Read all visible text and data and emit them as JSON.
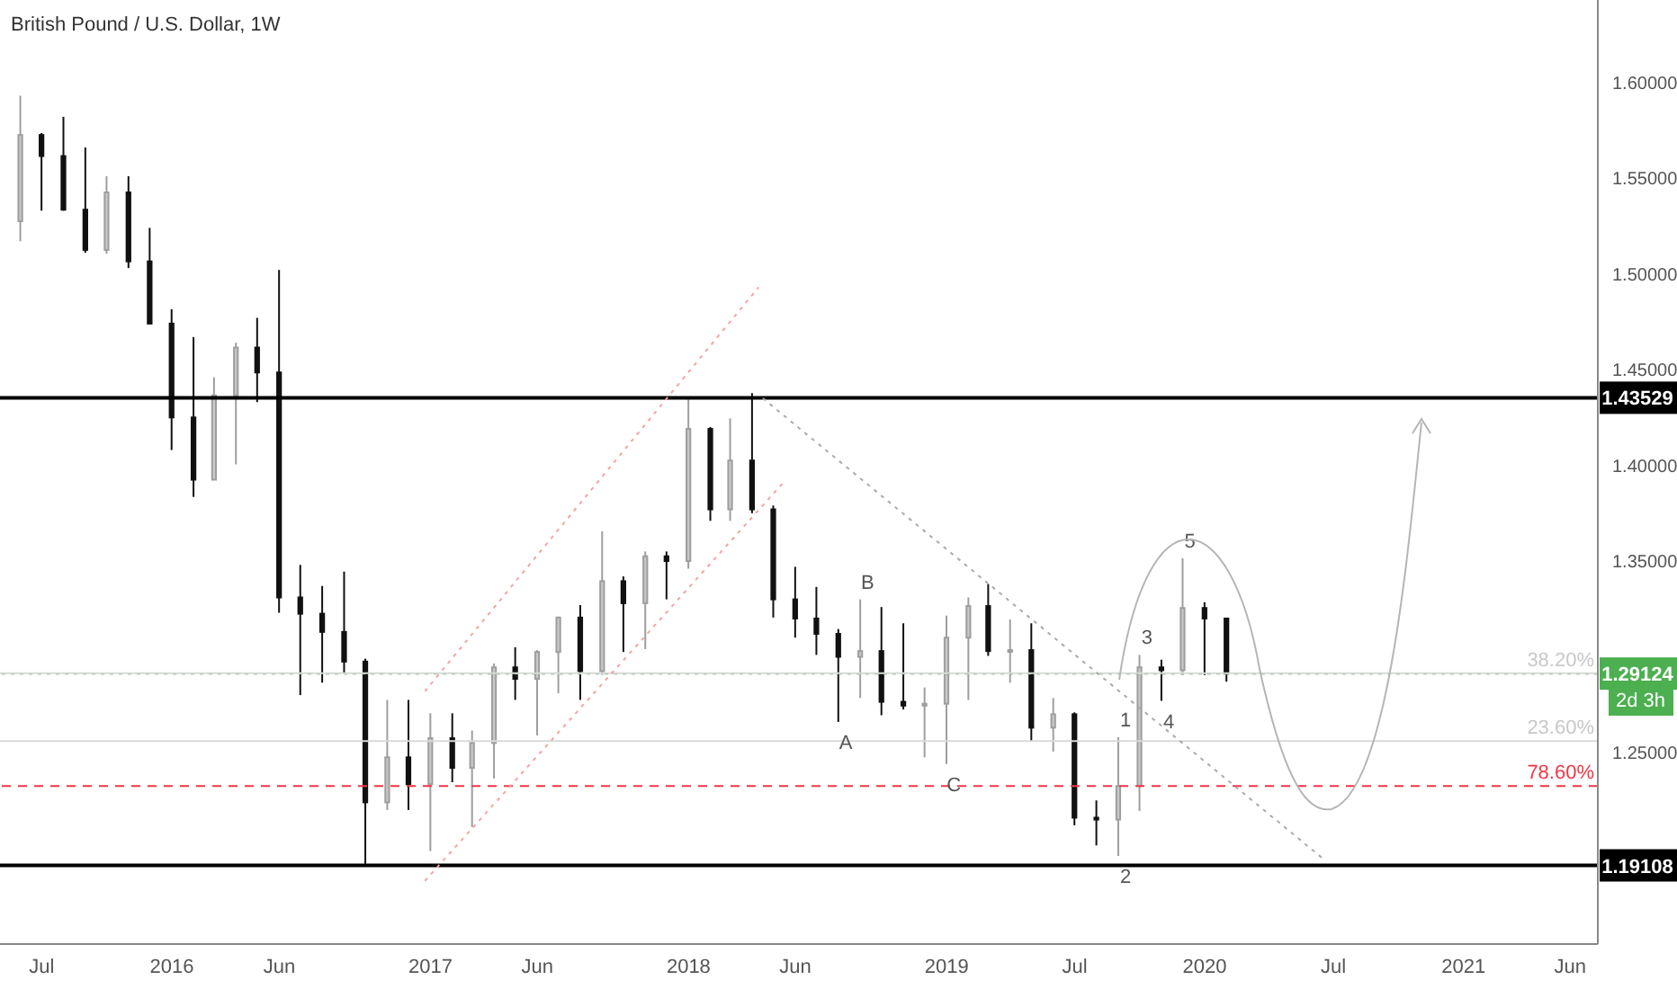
{
  "chart_data": {
    "type": "candlestick",
    "title": "British Pound / U.S. Dollar, 1W",
    "x": [
      "2015-06",
      "2015-07",
      "2015-08",
      "2015-09",
      "2015-10",
      "2015-11",
      "2015-12",
      "2016-01",
      "2016-02",
      "2016-03",
      "2016-04",
      "2016-05",
      "2016-06",
      "2016-07",
      "2016-08",
      "2016-09",
      "2016-10",
      "2016-11",
      "2016-12",
      "2017-01",
      "2017-02",
      "2017-03",
      "2017-04",
      "2017-05",
      "2017-06",
      "2017-07",
      "2017-08",
      "2017-09",
      "2017-10",
      "2017-11",
      "2017-12",
      "2018-01",
      "2018-02",
      "2018-03",
      "2018-04",
      "2018-05",
      "2018-06",
      "2018-07",
      "2018-08",
      "2018-09",
      "2018-10",
      "2018-11",
      "2018-12",
      "2019-01",
      "2019-02",
      "2019-03",
      "2019-04",
      "2019-05",
      "2019-06",
      "2019-07",
      "2019-08",
      "2019-09",
      "2019-10",
      "2019-11",
      "2019-12",
      "2020-01",
      "2020-02"
    ],
    "ohlc": [
      [
        1.5275,
        1.593,
        1.517,
        1.5725
      ],
      [
        1.5725,
        1.5735,
        1.533,
        1.5615
      ],
      [
        1.5615,
        1.582,
        1.533,
        1.5335
      ],
      [
        1.5335,
        1.566,
        1.511,
        1.5125
      ],
      [
        1.5125,
        1.551,
        1.5105,
        1.5425
      ],
      [
        1.5425,
        1.551,
        1.503,
        1.5065
      ],
      [
        1.5065,
        1.524,
        1.474,
        1.474
      ],
      [
        1.474,
        1.4815,
        1.408,
        1.425
      ],
      [
        1.425,
        1.467,
        1.3835,
        1.3925
      ],
      [
        1.3925,
        1.446,
        1.3925,
        1.4365
      ],
      [
        1.4365,
        1.464,
        1.4005,
        1.4615
      ],
      [
        1.4615,
        1.477,
        1.433,
        1.4485
      ],
      [
        1.4485,
        1.502,
        1.323,
        1.331
      ],
      [
        1.331,
        1.348,
        1.28,
        1.3225
      ],
      [
        1.3225,
        1.337,
        1.2865,
        1.313
      ],
      [
        1.313,
        1.3445,
        1.2915,
        1.2975
      ],
      [
        1.2975,
        1.299,
        1.191,
        1.224
      ],
      [
        1.224,
        1.2775,
        1.22,
        1.2475
      ],
      [
        1.2475,
        1.2775,
        1.22,
        1.2335
      ],
      [
        1.2335,
        1.2705,
        1.1985,
        1.2575
      ],
      [
        1.2575,
        1.2705,
        1.2345,
        1.242
      ],
      [
        1.242,
        1.2615,
        1.211,
        1.255
      ],
      [
        1.255,
        1.2965,
        1.2365,
        1.2945
      ],
      [
        1.2945,
        1.305,
        1.2775,
        1.2885
      ],
      [
        1.2885,
        1.3035,
        1.259,
        1.3025
      ],
      [
        1.3025,
        1.321,
        1.281,
        1.3205
      ],
      [
        1.3205,
        1.327,
        1.2775,
        1.2925
      ],
      [
        1.2925,
        1.3655,
        1.2905,
        1.3395
      ],
      [
        1.3395,
        1.342,
        1.3025,
        1.328
      ],
      [
        1.328,
        1.355,
        1.304,
        1.3525
      ],
      [
        1.3525,
        1.355,
        1.33,
        1.35
      ],
      [
        1.35,
        1.4345,
        1.346,
        1.419
      ],
      [
        1.419,
        1.42,
        1.371,
        1.377
      ],
      [
        1.377,
        1.4245,
        1.371,
        1.4025
      ],
      [
        1.4025,
        1.4377,
        1.375,
        1.377
      ],
      [
        1.377,
        1.379,
        1.3205,
        1.33
      ],
      [
        1.33,
        1.347,
        1.31,
        1.32
      ],
      [
        1.32,
        1.3365,
        1.301,
        1.312
      ],
      [
        1.312,
        1.3145,
        1.266,
        1.3
      ],
      [
        1.3,
        1.33,
        1.2785,
        1.303
      ],
      [
        1.303,
        1.326,
        1.2695,
        1.2765
      ],
      [
        1.2765,
        1.3175,
        1.2725,
        1.2745
      ],
      [
        1.2745,
        1.284,
        1.2475,
        1.2755
      ],
      [
        1.2755,
        1.3215,
        1.244,
        1.31
      ],
      [
        1.31,
        1.331,
        1.2775,
        1.3265
      ],
      [
        1.3265,
        1.338,
        1.3005,
        1.303
      ],
      [
        1.303,
        1.3195,
        1.2865,
        1.3035
      ],
      [
        1.3035,
        1.3175,
        1.256,
        1.263
      ],
      [
        1.263,
        1.2785,
        1.2505,
        1.27
      ],
      [
        1.27,
        1.271,
        1.212,
        1.216
      ],
      [
        1.216,
        1.225,
        1.2015,
        1.215
      ],
      [
        1.215,
        1.258,
        1.196,
        1.2325
      ],
      [
        1.2325,
        1.301,
        1.2195,
        1.2945
      ],
      [
        1.2945,
        1.2985,
        1.277,
        1.293
      ],
      [
        1.293,
        1.3515,
        1.2905,
        1.3255
      ],
      [
        1.3255,
        1.3285,
        1.2905,
        1.32
      ],
      [
        1.32,
        1.32,
        1.287,
        1.29124
      ]
    ],
    "xlim": [
      "2015-05-03",
      "2021-07-10"
    ],
    "xticks": [
      {
        "value": "2015-07-01",
        "label": "Jul"
      },
      {
        "value": "2016-01-01",
        "label": "2016"
      },
      {
        "value": "2016-06-01",
        "label": "Jun"
      },
      {
        "value": "2017-01-01",
        "label": "2017"
      },
      {
        "value": "2017-06-01",
        "label": "Jun"
      },
      {
        "value": "2018-01-01",
        "label": "2018"
      },
      {
        "value": "2018-06-01",
        "label": "Jun"
      },
      {
        "value": "2019-01-01",
        "label": "2019"
      },
      {
        "value": "2019-07-01",
        "label": "Jul"
      },
      {
        "value": "2020-01-01",
        "label": "2020"
      },
      {
        "value": "2020-07-01",
        "label": "Jul"
      },
      {
        "value": "2021-01-01",
        "label": "2021"
      },
      {
        "value": "2021-06-01",
        "label": "Jun"
      }
    ],
    "ylim": [
      1.15,
      1.643
    ],
    "yticks": [
      {
        "value": 1.25,
        "label": "1.25000"
      },
      {
        "value": 1.35,
        "label": "1.35000"
      },
      {
        "value": 1.4,
        "label": "1.40000"
      },
      {
        "value": 1.45,
        "label": "1.45000"
      },
      {
        "value": 1.5,
        "label": "1.50000"
      },
      {
        "value": 1.55,
        "label": "1.55000"
      },
      {
        "value": 1.6,
        "label": "1.60000"
      }
    ],
    "ref_lines": [
      {
        "axis": "y",
        "value": 1.43529,
        "label": "1.43529",
        "color": "#000000",
        "line_style": "solid"
      },
      {
        "axis": "y",
        "value": 1.19108,
        "label": "1.19108",
        "color": "#000000",
        "line_style": "solid"
      },
      {
        "axis": "y",
        "value": 1.29124,
        "label": "1.29124",
        "color": "#4caf50",
        "line_style": "dotted"
      },
      {
        "axis": "y",
        "value": 1.2915,
        "color": "#d9d9d9",
        "line_style": "solid"
      },
      {
        "axis": "y",
        "value": 1.256,
        "color": "#d9d9d9",
        "line_style": "solid"
      },
      {
        "axis": "y",
        "value": 1.2325,
        "color": "#f23645",
        "line_style": "dashed"
      }
    ],
    "series": [
      {
        "type": "line",
        "x": [
          "2016-12-24",
          "2018-04-10"
        ],
        "values": [
          1.282,
          1.493
        ],
        "color": "#f4a3a3",
        "line_style": "dotted"
      },
      {
        "type": "line",
        "x": [
          "2016-12-24",
          "2018-05-15"
        ],
        "values": [
          1.183,
          1.391
        ],
        "color": "#f4a3a3",
        "line_style": "dotted"
      },
      {
        "type": "line",
        "x": [
          "2018-04-16",
          "2020-06-15"
        ],
        "values": [
          1.435,
          1.195
        ],
        "color": "#aaaaaa",
        "line_style": "dotted"
      }
    ],
    "annotations": [
      "2d 3h",
      "38.20%",
      "23.60%",
      "78.60%",
      {
        "text": "A",
        "x": "2018-08",
        "y": 1.266
      },
      {
        "text": "B",
        "x": "2018-09",
        "y": 1.33
      },
      {
        "text": "C",
        "x": "2019-01",
        "y": 1.244
      },
      {
        "text": "1",
        "x": "2019-09",
        "y": 1.258
      },
      {
        "text": "2",
        "x": "2019-09",
        "y": 1.196
      },
      {
        "text": "3",
        "x": "2019-10",
        "y": 1.301
      },
      {
        "text": "4",
        "x": "2019-11",
        "y": 1.277
      },
      {
        "text": "5",
        "x": "2019-12",
        "y": 1.3515
      }
    ]
  }
}
